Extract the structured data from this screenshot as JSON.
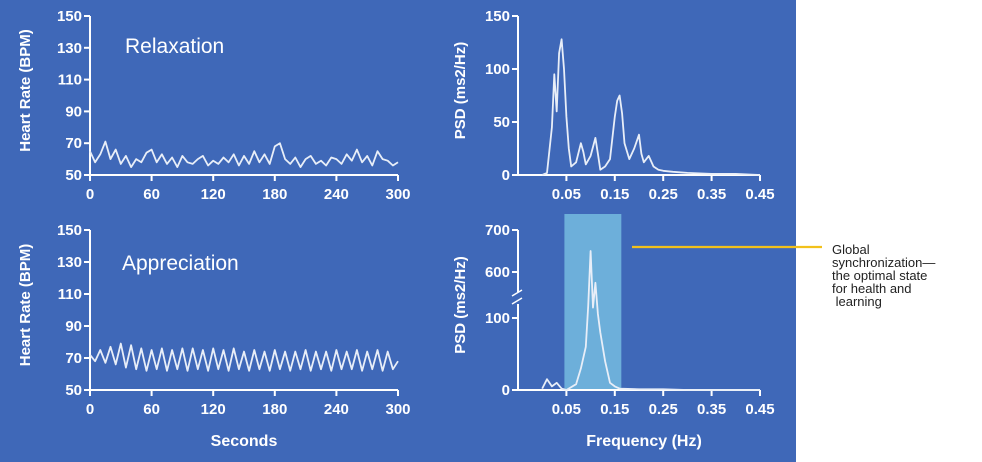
{
  "colors": {
    "background": "#3f68b8",
    "axis": "#ffffff",
    "trace": "#e8eef8",
    "highlight_tick": "#f2c11b",
    "band": "#7ec7e6",
    "callout_line": "#f2c11b"
  },
  "callout": {
    "text": "Global\nsynchronization—\nthe optimal state\nfor health and\n learning"
  },
  "chart_data": [
    {
      "id": "hr-relax",
      "type": "line",
      "title": "Relaxation",
      "ylabel": "Heart Rate (BPM)",
      "xlabel": "",
      "xlim": [
        0,
        300
      ],
      "ylim": [
        50,
        150
      ],
      "xticks": [
        "0",
        "60",
        "120",
        "180",
        "240",
        "300"
      ],
      "yticks": [
        "50",
        "70",
        "90",
        "110",
        "130",
        "150"
      ],
      "x": [
        0,
        5,
        10,
        15,
        20,
        25,
        30,
        35,
        40,
        45,
        50,
        55,
        60,
        65,
        70,
        75,
        80,
        85,
        90,
        95,
        100,
        105,
        110,
        115,
        120,
        125,
        130,
        135,
        140,
        145,
        150,
        155,
        160,
        165,
        170,
        175,
        180,
        185,
        190,
        195,
        200,
        205,
        210,
        215,
        220,
        225,
        230,
        235,
        240,
        245,
        250,
        255,
        260,
        265,
        270,
        275,
        280,
        285,
        290,
        295,
        300
      ],
      "values": [
        65,
        58,
        63,
        71,
        60,
        66,
        57,
        62,
        55,
        60,
        58,
        64,
        66,
        58,
        63,
        57,
        61,
        55,
        62,
        58,
        57,
        60,
        62,
        56,
        59,
        57,
        61,
        58,
        63,
        56,
        62,
        57,
        65,
        58,
        63,
        57,
        68,
        70,
        60,
        57,
        61,
        55,
        60,
        62,
        57,
        59,
        56,
        61,
        60,
        57,
        63,
        59,
        66,
        58,
        62,
        56,
        65,
        60,
        59,
        56,
        58
      ]
    },
    {
      "id": "hr-appr",
      "type": "line",
      "title": "Appreciation",
      "ylabel": "Heart Rate (BPM)",
      "xlabel": "Seconds",
      "xlim": [
        0,
        300
      ],
      "ylim": [
        50,
        150
      ],
      "xticks": [
        "0",
        "60",
        "120",
        "180",
        "240",
        "300"
      ],
      "yticks": [
        "50",
        "70",
        "90",
        "110",
        "130",
        "150"
      ],
      "x": [
        0,
        5,
        10,
        15,
        20,
        25,
        30,
        35,
        40,
        45,
        50,
        55,
        60,
        65,
        70,
        75,
        80,
        85,
        90,
        95,
        100,
        105,
        110,
        115,
        120,
        125,
        130,
        135,
        140,
        145,
        150,
        155,
        160,
        165,
        170,
        175,
        180,
        185,
        190,
        195,
        200,
        205,
        210,
        215,
        220,
        225,
        230,
        235,
        240,
        245,
        250,
        255,
        260,
        265,
        270,
        275,
        280,
        285,
        290,
        295,
        300
      ],
      "values": [
        72,
        68,
        75,
        67,
        77,
        66,
        79,
        64,
        78,
        63,
        76,
        62,
        75,
        63,
        76,
        62,
        75,
        63,
        76,
        62,
        76,
        63,
        75,
        62,
        76,
        63,
        75,
        62,
        76,
        63,
        74,
        62,
        75,
        63,
        74,
        62,
        75,
        63,
        74,
        62,
        74,
        63,
        75,
        62,
        74,
        63,
        74,
        62,
        75,
        63,
        74,
        63,
        75,
        62,
        74,
        63,
        75,
        62,
        74,
        63,
        68
      ]
    },
    {
      "id": "psd-relax",
      "type": "line",
      "title": "",
      "ylabel": "PSD (ms2/Hz)",
      "xlabel": "",
      "xlim": [
        -0.05,
        0.45
      ],
      "ylim": [
        0,
        150
      ],
      "xticks": [
        "0.05",
        "0.15",
        "0.25",
        "0.35",
        "0.45"
      ],
      "yticks": [
        "0",
        "50",
        "100",
        "150"
      ],
      "highlight_ytick": "150",
      "x": [
        0.0,
        0.01,
        0.02,
        0.025,
        0.03,
        0.035,
        0.04,
        0.045,
        0.05,
        0.055,
        0.06,
        0.07,
        0.08,
        0.085,
        0.09,
        0.1,
        0.11,
        0.115,
        0.12,
        0.13,
        0.14,
        0.15,
        0.155,
        0.16,
        0.165,
        0.17,
        0.18,
        0.19,
        0.2,
        0.205,
        0.21,
        0.22,
        0.23,
        0.24,
        0.25,
        0.27,
        0.3,
        0.35,
        0.4,
        0.45
      ],
      "values": [
        0,
        2,
        45,
        95,
        60,
        115,
        128,
        100,
        55,
        25,
        8,
        12,
        30,
        22,
        10,
        18,
        35,
        20,
        5,
        8,
        15,
        55,
        70,
        75,
        58,
        30,
        15,
        25,
        38,
        20,
        12,
        18,
        8,
        5,
        4,
        3,
        2,
        1,
        1,
        0
      ]
    },
    {
      "id": "psd-appr",
      "type": "line",
      "title": "",
      "ylabel": "PSD (ms2/Hz)",
      "xlabel": "Frequency (Hz)",
      "xlim": [
        -0.05,
        0.45
      ],
      "ylim": [
        0,
        700
      ],
      "xticks": [
        "0.05",
        "0.15",
        "0.25",
        "0.35",
        "0.45"
      ],
      "yticks": [
        "0",
        "100",
        "600",
        "700"
      ],
      "highlight_ytick": "700",
      "highlight_band": [
        0.05,
        0.18
      ],
      "x": [
        0.0,
        0.01,
        0.02,
        0.03,
        0.04,
        0.05,
        0.06,
        0.07,
        0.08,
        0.09,
        0.095,
        0.1,
        0.105,
        0.11,
        0.115,
        0.12,
        0.13,
        0.14,
        0.15,
        0.16,
        0.2,
        0.25,
        0.3,
        0.35,
        0.4,
        0.45
      ],
      "values": [
        2,
        15,
        5,
        10,
        2,
        0,
        4,
        8,
        30,
        60,
        250,
        650,
        230,
        540,
        150,
        80,
        40,
        10,
        5,
        2,
        1,
        1,
        0,
        0,
        0,
        0
      ]
    }
  ]
}
